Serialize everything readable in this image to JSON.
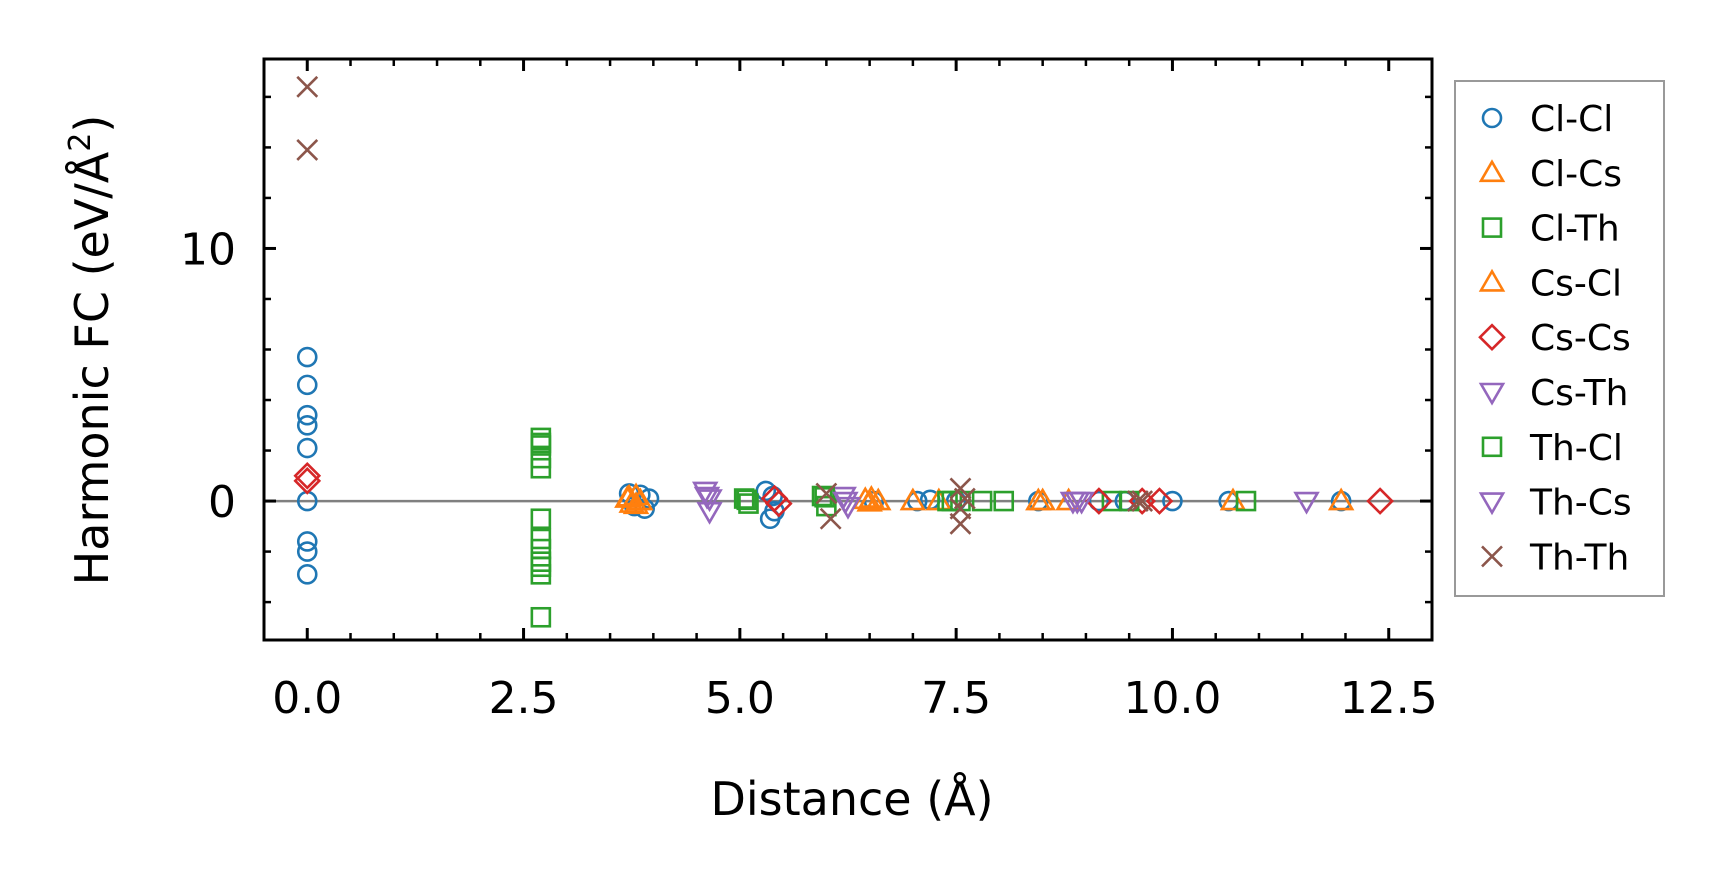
{
  "chart_data": {
    "type": "scatter",
    "title": "",
    "xlabel": "Distance (Å)",
    "ylabel_main": "Harmonic FC (eV/Å",
    "ylabel_sup": "2",
    "ylabel_close": ")",
    "xlim": [
      -0.5,
      13.0
    ],
    "ylim": [
      -5.5,
      17.5
    ],
    "xticks": [
      0.0,
      2.5,
      5.0,
      7.5,
      10.0,
      12.5
    ],
    "xtick_labels": [
      "0.0",
      "2.5",
      "5.0",
      "7.5",
      "10.0",
      "12.5"
    ],
    "yticks": [
      0,
      10
    ],
    "ytick_labels": [
      "0",
      "10"
    ],
    "hline_y": 0,
    "legend_position": "outside-right",
    "series": [
      {
        "name": "Cl-Cl",
        "marker": "circle",
        "color": "#1f77b4",
        "x": [
          0,
          0,
          0,
          0,
          0,
          0,
          0,
          0,
          0,
          3.72,
          3.78,
          3.85,
          3.9,
          3.95,
          5.3,
          5.35,
          5.38,
          5.4,
          6.55,
          7.05,
          7.2,
          7.5,
          8.45,
          9.15,
          9.45,
          10.0,
          10.65,
          11.95
        ],
        "y": [
          5.7,
          4.6,
          3.4,
          3.0,
          2.1,
          -1.6,
          -2.0,
          -2.9,
          0.0,
          0.3,
          -0.2,
          0.25,
          -0.3,
          0.1,
          0.4,
          -0.7,
          0.2,
          -0.4,
          0.0,
          0.0,
          0.05,
          0.0,
          0.0,
          0.0,
          0.0,
          0.0,
          0.0,
          0.0
        ]
      },
      {
        "name": "Cl-Cs",
        "marker": "triangle-up",
        "color": "#ff7f0e",
        "x": [
          3.7,
          3.75,
          3.8,
          3.85,
          6.45,
          6.5,
          6.6,
          7.0,
          7.3,
          8.45,
          8.8,
          10.7,
          11.95
        ],
        "y": [
          0.1,
          -0.1,
          0.2,
          0.0,
          0.05,
          -0.05,
          0.0,
          0.0,
          0.0,
          0.0,
          0.0,
          0.0,
          0.0
        ]
      },
      {
        "name": "Cl-Th",
        "marker": "square",
        "color": "#2ca02c",
        "x": [
          2.7,
          2.7,
          2.7,
          2.7,
          2.7,
          2.7,
          2.7,
          2.7,
          2.7,
          2.7,
          5.05,
          5.1,
          5.95,
          6.0,
          7.4,
          7.55,
          7.8,
          8.05,
          9.3,
          10.85
        ],
        "y": [
          2.5,
          2.2,
          1.7,
          1.3,
          -0.7,
          -1.5,
          -1.9,
          -2.4,
          -2.9,
          -4.6,
          0.1,
          -0.1,
          0.2,
          -0.2,
          0.0,
          0.0,
          0.0,
          0.0,
          0.0,
          0.0
        ]
      },
      {
        "name": "Cs-Cl",
        "marker": "triangle-up",
        "color": "#ff7f0e",
        "x": [
          3.72,
          3.8,
          6.52,
          8.5
        ],
        "y": [
          0.15,
          -0.15,
          0.1,
          0.0
        ]
      },
      {
        "name": "Cs-Cs",
        "marker": "diamond",
        "color": "#d62728",
        "x": [
          0,
          0,
          5.4,
          5.45,
          9.15,
          9.65,
          9.85,
          12.4
        ],
        "y": [
          1.0,
          0.8,
          0.1,
          -0.1,
          0.0,
          0.0,
          0.0,
          0.0
        ]
      },
      {
        "name": "Cs-Th",
        "marker": "triangle-down",
        "color": "#9467bd",
        "x": [
          4.6,
          4.65,
          4.65,
          6.2,
          6.25,
          8.85,
          8.95,
          11.55
        ],
        "y": [
          0.4,
          0.1,
          -0.4,
          0.2,
          -0.2,
          0.0,
          0.0,
          0.0
        ]
      },
      {
        "name": "Th-Cl",
        "marker": "square",
        "color": "#2ca02c",
        "x": [
          2.7,
          2.7,
          5.08,
          5.98,
          7.45,
          9.5
        ],
        "y": [
          2.3,
          -2.6,
          0.05,
          0.15,
          0.0,
          0.0
        ]
      },
      {
        "name": "Th-Cs",
        "marker": "triangle-down",
        "color": "#9467bd",
        "x": [
          4.62,
          6.22,
          8.9
        ],
        "y": [
          0.2,
          0.0,
          0.0
        ]
      },
      {
        "name": "Th-Th",
        "marker": "x",
        "color": "#8c564b",
        "x": [
          0,
          0,
          6.0,
          6.05,
          7.55,
          7.55,
          7.55,
          7.6,
          9.6,
          9.65
        ],
        "y": [
          16.4,
          13.9,
          0.3,
          -0.7,
          0.5,
          -0.3,
          -0.9,
          0.1,
          0.0,
          0.0
        ]
      }
    ]
  }
}
